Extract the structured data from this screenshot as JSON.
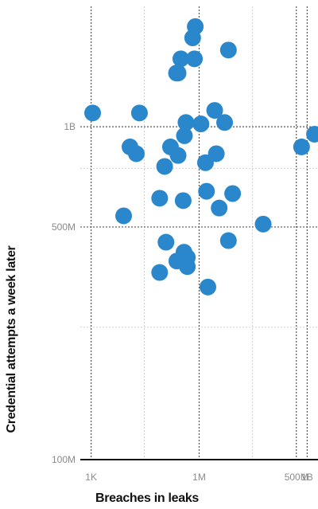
{
  "chart_data": {
    "type": "scatter",
    "title": "",
    "xlabel": "Breaches in leaks",
    "ylabel": "Credential attempts a week later",
    "x_scale": "log",
    "y_scale": "log",
    "xlim": [
      500,
      2000000000
    ],
    "ylim": [
      100000000,
      2300000000
    ],
    "x_ticks": [
      {
        "value": 1000,
        "label": "1K"
      },
      {
        "value": 1000000,
        "label": "1M"
      },
      {
        "value": 500000000,
        "label": "500M"
      },
      {
        "value": 1000000000,
        "label": "1B"
      }
    ],
    "y_ticks": [
      {
        "value": 100000000,
        "label": "100M"
      },
      {
        "value": 500000000,
        "label": "500M"
      },
      {
        "value": 1000000000,
        "label": "1B"
      }
    ],
    "grid": true,
    "marker_color": "#2b87cc",
    "points": [
      {
        "x": 1100,
        "y": 1100000000
      },
      {
        "x": 22000,
        "y": 1100000000
      },
      {
        "x": 310000,
        "y": 1600000000
      },
      {
        "x": 235000,
        "y": 1450000000
      },
      {
        "x": 660000,
        "y": 1850000000
      },
      {
        "x": 780000,
        "y": 2000000000
      },
      {
        "x": 740000,
        "y": 1600000000
      },
      {
        "x": 6500000,
        "y": 1700000000
      },
      {
        "x": 260000,
        "y": 1450000000
      },
      {
        "x": 2700000,
        "y": 1120000000
      },
      {
        "x": 5100000,
        "y": 1030000000
      },
      {
        "x": 430000,
        "y": 1030000000
      },
      {
        "x": 1120000,
        "y": 1020000000
      },
      {
        "x": 390000,
        "y": 940000000
      },
      {
        "x": 12000,
        "y": 870000000
      },
      {
        "x": 18000,
        "y": 830000000
      },
      {
        "x": 160000,
        "y": 870000000
      },
      {
        "x": 260000,
        "y": 820000000
      },
      {
        "x": 3000000,
        "y": 830000000
      },
      {
        "x": 110000,
        "y": 760000000
      },
      {
        "x": 1500000,
        "y": 780000000
      },
      {
        "x": 700000000,
        "y": 870000000
      },
      {
        "x": 1600000000,
        "y": 950000000
      },
      {
        "x": 1600000,
        "y": 640000000
      },
      {
        "x": 8500000,
        "y": 630000000
      },
      {
        "x": 80000,
        "y": 610000000
      },
      {
        "x": 360000,
        "y": 600000000
      },
      {
        "x": 3600000,
        "y": 570000000
      },
      {
        "x": 8000,
        "y": 540000000
      },
      {
        "x": 60000000,
        "y": 510000000
      },
      {
        "x": 120000,
        "y": 450000000
      },
      {
        "x": 6500000,
        "y": 455000000
      },
      {
        "x": 380000,
        "y": 420000000
      },
      {
        "x": 470000,
        "y": 405000000
      },
      {
        "x": 240000,
        "y": 395000000
      },
      {
        "x": 470000,
        "y": 380000000
      },
      {
        "x": 80000,
        "y": 365000000
      },
      {
        "x": 1750000,
        "y": 330000000
      }
    ]
  }
}
